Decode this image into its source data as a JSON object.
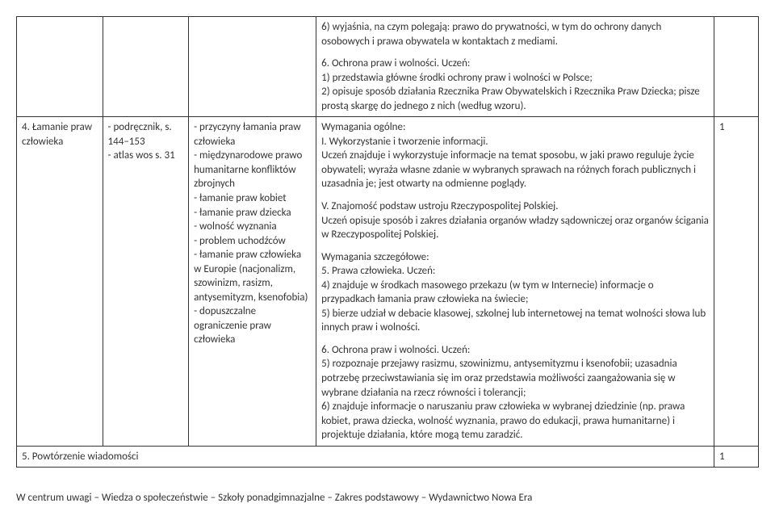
{
  "row1": {
    "col4_p1": "6) wyjaśnia, na czym polegają: prawo do prywatności, w tym do ochrony danych osobowych i prawa obywatela w kontaktach z mediami.",
    "col4_p2": "6. Ochrona praw i wolności. Uczeń:\n1) przedstawia główne środki ochrony praw i wolności w Polsce;\n2) opisuje sposób działania Rzecznika Praw Obywatelskich i Rzecznika Praw Dziecka; pisze prostą skargę do jednego z nich (według wzoru)."
  },
  "row2": {
    "col1": "4. Łamanie praw człowieka",
    "col2": "- podręcznik, s. 144–153\n- atlas wos s. 31",
    "col3": "- przyczyny łamania praw człowieka\n- międzynarodowe prawo humanitarne konfliktów zbrojnych\n- łamanie praw kobiet\n- łamanie praw dziecka\n- wolność wyznania\n- problem uchodźców\n- łamanie praw człowieka w Europie (nacjonalizm, szowinizm, rasizm, antysemityzm, ksenofobia)\n- dopuszczalne ograniczenie praw człowieka",
    "col4_p1": "Wymagania ogólne:\nI. Wykorzystanie i tworzenie informacji.\nUczeń znajduje i wykorzystuje informacje na temat sposobu, w jaki prawo reguluje życie obywateli; wyraża własne zdanie w wybranych sprawach na różnych forach publicznych i uzasadnia je; jest otwarty na odmienne poglądy.",
    "col4_p2": "V. Znajomość podstaw ustroju Rzeczypospolitej Polskiej.\nUczeń opisuje sposób i zakres działania organów władzy sądowniczej oraz organów ścigania w Rzeczypospolitej Polskiej.",
    "col4_p3": "Wymagania szczegółowe:\n5. Prawa człowieka. Uczeń:\n4) znajduje w środkach masowego przekazu (w tym w Internecie) informacje o przypadkach łamania praw człowieka na świecie;\n5) bierze udział w debacie klasowej, szkolnej lub internetowej na temat wolności słowa lub innych praw i wolności.",
    "col4_p4": "6. Ochrona praw i wolności. Uczeń:\n5) rozpoznaje przejawy rasizmu, szowinizmu, antysemityzmu i ksenofobii; uzasadnia potrzebę przeciwstawiania się im oraz przedstawia możliwości zaangażowania się w wybrane działania na rzecz równości i tolerancji;\n6) znajduje informacje o naruszaniu praw człowieka w wybranej dziedzinie (np. prawa kobiet, prawa dziecka, wolność wyznania, prawo do edukacji, prawa humanitarne) i projektuje działania, które mogą temu zaradzić.",
    "col5": "1"
  },
  "row3": {
    "col1": "5. Powtórzenie wiadomości",
    "col5": "1"
  },
  "footer": "W centrum uwagi – Wiedza o społeczeństwie – Szkoły ponadgimnazjalne – Zakres podstawowy – Wydawnictwo Nowa Era"
}
